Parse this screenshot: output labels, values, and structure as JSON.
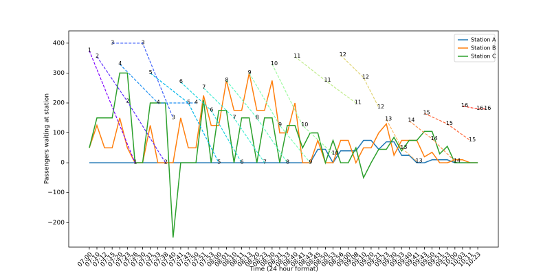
{
  "chart_data": {
    "type": "line",
    "xlabel": "Time (24 hour format)",
    "ylabel": "Passengers waiting at station",
    "categories": [
      "07:00",
      "07:10",
      "07:12",
      "07:15",
      "07:20",
      "07:23",
      "07:26",
      "07:30",
      "07:31",
      "07:33",
      "07:38",
      "07:40",
      "07:41",
      "07:43",
      "07:50",
      "07:51",
      "07:53",
      "08:00",
      "08:01",
      "08:10",
      "08:11",
      "08:13",
      "08:20",
      "08:23",
      "08:30",
      "08:31",
      "08:33",
      "08:40",
      "08:41",
      "08:43",
      "08:45",
      "08:50",
      "08:53",
      "08:56",
      "09:00",
      "09:08",
      "09:10",
      "09:20",
      "09:21",
      "09:23",
      "09:30",
      "09:33",
      "09:40",
      "09:41",
      "09:43",
      "09:50",
      "09:51",
      "09:53",
      "10:00",
      "10:03",
      "10:11",
      "10:23"
    ],
    "series": [
      {
        "name": "Station A",
        "color": "#1f77b4",
        "values": [
          0,
          0,
          0,
          0,
          0,
          0,
          0,
          0,
          0,
          0,
          0,
          0,
          0,
          0,
          0,
          0,
          0,
          0,
          0,
          0,
          0,
          0,
          0,
          0,
          0,
          0,
          0,
          0,
          0,
          0,
          45,
          45,
          0,
          40,
          40,
          40,
          75,
          75,
          45,
          70,
          70,
          25,
          25,
          0,
          0,
          10,
          10,
          10,
          0,
          0,
          0,
          0
        ]
      },
      {
        "name": "Station B",
        "color": "#ff7f0e",
        "values": [
          50,
          125,
          50,
          50,
          150,
          50,
          0,
          0,
          125,
          0,
          0,
          0,
          150,
          50,
          50,
          225,
          125,
          125,
          275,
          175,
          175,
          300,
          175,
          175,
          275,
          100,
          100,
          200,
          0,
          0,
          75,
          0,
          0,
          75,
          75,
          0,
          50,
          50,
          100,
          130,
          25,
          75,
          75,
          75,
          20,
          35,
          0,
          0,
          10,
          10,
          0,
          0
        ]
      },
      {
        "name": "Station C",
        "color": "#2ca02c",
        "values": [
          50,
          150,
          150,
          150,
          300,
          300,
          0,
          0,
          200,
          200,
          200,
          -250,
          0,
          0,
          0,
          210,
          0,
          175,
          175,
          0,
          150,
          150,
          0,
          150,
          150,
          0,
          125,
          125,
          50,
          100,
          100,
          0,
          75,
          0,
          0,
          50,
          -50,
          0,
          45,
          45,
          85,
          40,
          75,
          75,
          105,
          105,
          30,
          55,
          0,
          0,
          0,
          0
        ]
      }
    ],
    "trains": [
      {
        "name": "1",
        "color": "#8000ff",
        "x": [
          0,
          6
        ],
        "values": [
          375,
          0
        ]
      },
      {
        "name": "2",
        "color": "#6030fe",
        "x": [
          1,
          5,
          10
        ],
        "values": [
          355,
          205,
          0
        ]
      },
      {
        "name": "3",
        "color": "#4062fa",
        "x": [
          3,
          7,
          11
        ],
        "values": [
          400,
          400,
          150
        ]
      },
      {
        "name": "4",
        "color": "#2090f2",
        "x": [
          4,
          9,
          14
        ],
        "values": [
          330,
          200,
          200
        ]
      },
      {
        "name": "5",
        "color": "#00b5eb",
        "x": [
          8,
          13,
          17
        ],
        "values": [
          300,
          200,
          0
        ]
      },
      {
        "name": "6",
        "color": "#20d4de",
        "x": [
          12,
          16,
          20
        ],
        "values": [
          270,
          175,
          0
        ]
      },
      {
        "name": "7",
        "color": "#40ecd3",
        "x": [
          15,
          19,
          23
        ],
        "values": [
          250,
          150,
          0
        ]
      },
      {
        "name": "8",
        "color": "#60fac4",
        "x": [
          18,
          22,
          26
        ],
        "values": [
          275,
          150,
          0
        ]
      },
      {
        "name": "9",
        "color": "#80ffb4",
        "x": [
          21,
          25,
          29
        ],
        "values": [
          300,
          125,
          0
        ]
      },
      {
        "name": "10",
        "color": "#a0fa9f",
        "x": [
          24,
          28,
          32
        ],
        "values": [
          330,
          125,
          30
        ]
      },
      {
        "name": "11",
        "color": "#c0ec8a",
        "x": [
          27,
          31,
          35
        ],
        "values": [
          355,
          275,
          200
        ]
      },
      {
        "name": "12",
        "color": "#e0d474",
        "x": [
          33,
          36,
          38
        ],
        "values": [
          360,
          285,
          185
        ]
      },
      {
        "name": "13",
        "color": "#ffb55f",
        "x": [
          39,
          41,
          43
        ],
        "values": [
          145,
          50,
          5
        ]
      },
      {
        "name": "14",
        "color": "#ff904a",
        "x": [
          42,
          45,
          48
        ],
        "values": [
          140,
          80,
          5
        ]
      },
      {
        "name": "15",
        "color": "#ff6233",
        "x": [
          44,
          47,
          50
        ],
        "values": [
          165,
          130,
          75
        ]
      },
      {
        "name": "16",
        "color": "#ff2d1a",
        "x": [
          49,
          51,
          52
        ],
        "values": [
          190,
          180,
          180
        ]
      }
    ],
    "xlim": [
      -2.7,
      53.7
    ],
    "ylim": [
      -282,
      441
    ],
    "yticks": [
      {
        "value": -200,
        "label": "−200"
      },
      {
        "value": -100,
        "label": "−100"
      },
      0,
      100,
      200,
      300,
      400
    ],
    "legend": "upper right"
  }
}
